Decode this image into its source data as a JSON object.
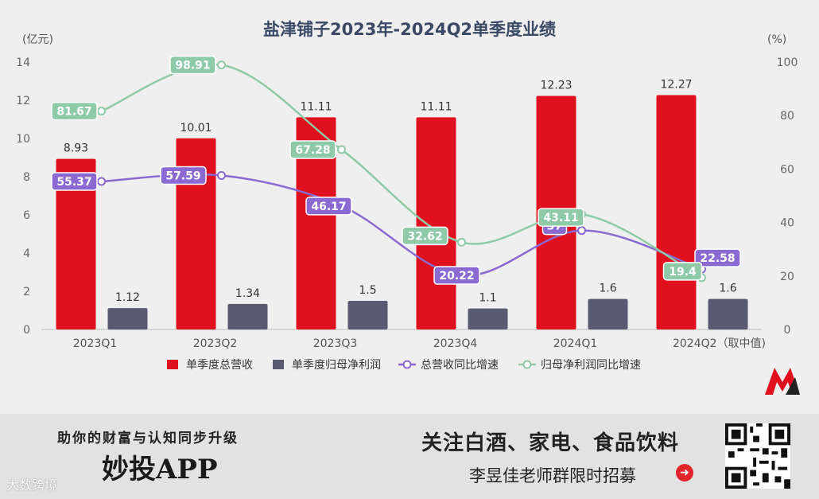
{
  "chart_data": {
    "type": "bar",
    "title": "盐津铺子2023年-2024Q2单季度业绩",
    "categories": [
      "2023Q1",
      "2023Q2",
      "2023Q3",
      "2023Q4",
      "2024Q1",
      "2024Q2（取中值)"
    ],
    "left_unit": "(亿元)",
    "right_unit": "(%)",
    "left_ticks": [
      "0",
      "2",
      "4",
      "6",
      "8",
      "10",
      "12",
      "14"
    ],
    "right_ticks": [
      "0",
      "20",
      "40",
      "60",
      "80",
      "100"
    ],
    "ylim_left": [
      0,
      14
    ],
    "ylim_right": [
      0,
      100
    ],
    "grid": false,
    "legend_position": "bottom",
    "series": [
      {
        "name": "单季度总营收",
        "kind": "bar",
        "axis": "left",
        "color": "#e0101e",
        "values": [
          8.93,
          10.01,
          11.11,
          11.11,
          12.23,
          12.27
        ],
        "labels": [
          "8.93",
          "10.01",
          "11.11",
          "11.11",
          "12.23",
          "12.27"
        ]
      },
      {
        "name": "单季度归母净利润",
        "kind": "bar",
        "axis": "left",
        "color": "#5a5a72",
        "values": [
          1.12,
          1.34,
          1.5,
          1.1,
          1.6,
          1.6
        ],
        "labels": [
          "1.12",
          "1.34",
          "1.5",
          "1.1",
          "1.6",
          "1.6"
        ]
      },
      {
        "name": "总营收同比增速",
        "kind": "line",
        "axis": "right",
        "color": "#8a6ad0",
        "values": [
          55.37,
          57.59,
          46.17,
          20.22,
          37,
          22.58
        ],
        "labels": [
          "55.37",
          "57.59",
          "46.17",
          "20.22",
          "37",
          "22.58"
        ]
      },
      {
        "name": "归母净利润同比增速",
        "kind": "line",
        "axis": "right",
        "color": "#8fcaa8",
        "values": [
          81.67,
          98.91,
          67.28,
          32.62,
          43.11,
          19.4
        ],
        "labels": [
          "81.67",
          "98.91",
          "67.28",
          "32.62",
          "43.11",
          "19.4"
        ]
      }
    ]
  },
  "banner": {
    "tagline": "助你的财富与认知同步升级",
    "app_name": "妙投APP",
    "promo_line1": "关注白酒、家电、食品饮料",
    "promo_line2": "李昱佳老师群限时招募",
    "watermark": "大数跨境"
  },
  "icons": {
    "arrow": "arrow-right-circle-icon",
    "logo": "brand-logo-icon",
    "qr": "qr-code-icon"
  }
}
